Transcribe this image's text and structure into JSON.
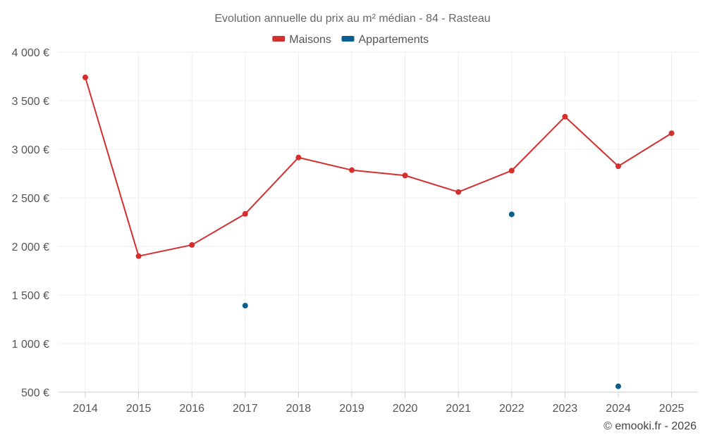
{
  "chart_data": {
    "type": "line",
    "title": "Evolution annuelle du prix au m² médian - 84 - Rasteau",
    "categories": [
      "2014",
      "2015",
      "2016",
      "2017",
      "2018",
      "2019",
      "2020",
      "2021",
      "2022",
      "2023",
      "2024",
      "2025"
    ],
    "y_ticks": [
      "500 €",
      "1 000 €",
      "1 500 €",
      "2 000 €",
      "2 500 €",
      "3 000 €",
      "3 500 €",
      "4 000 €"
    ],
    "ylim": [
      500,
      4000
    ],
    "series": [
      {
        "name": "Maisons",
        "color": "#d32f2f",
        "line": true,
        "values": [
          3740,
          1900,
          2015,
          2335,
          2915,
          2785,
          2730,
          2560,
          2780,
          3335,
          2825,
          3165
        ]
      },
      {
        "name": "Appartements",
        "color": "#0a5f91",
        "line": false,
        "values": [
          null,
          null,
          null,
          1390,
          null,
          null,
          null,
          null,
          2330,
          null,
          560,
          null
        ]
      }
    ]
  },
  "credit": "© emooki.fr - 2026"
}
